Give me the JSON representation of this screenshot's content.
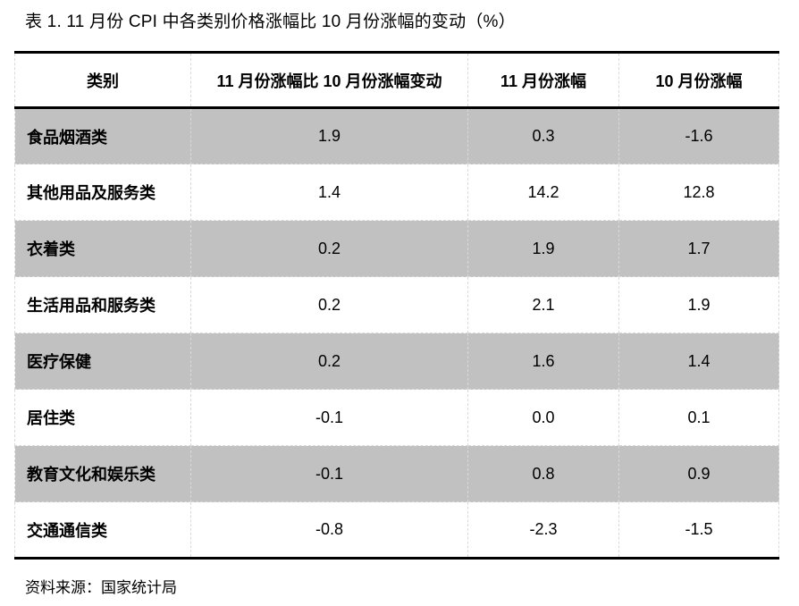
{
  "title": "表 1. 11 月份 CPI 中各类别价格涨幅比 10 月份涨幅的变动（%）",
  "source_note": "资料来源：国家统计局",
  "headers": [
    "类别",
    "11 月份涨幅比 10 月份涨幅变动",
    "11 月份涨幅",
    "10 月份涨幅"
  ],
  "rows": [
    [
      "食品烟酒类",
      "1.9",
      "0.3",
      "-1.6"
    ],
    [
      "其他用品及服务类",
      "1.4",
      "14.2",
      "12.8"
    ],
    [
      "衣着类",
      "0.2",
      "1.9",
      "1.7"
    ],
    [
      "生活用品和服务类",
      "0.2",
      "2.1",
      "1.9"
    ],
    [
      "医疗保健",
      "0.2",
      "1.6",
      "1.4"
    ],
    [
      "居住类",
      "-0.1",
      "0.0",
      "0.1"
    ],
    [
      "教育文化和娱乐类",
      "-0.1",
      "0.8",
      "0.9"
    ],
    [
      "交通通信类",
      "-0.8",
      "-2.3",
      "-1.5"
    ]
  ],
  "colors": {
    "background": "#ffffff",
    "row_stripe": "#c1c1c1",
    "thick_border": "#000000",
    "dashed_grid": "#d9d9d9",
    "text": "#000000"
  },
  "chart_data": {
    "type": "table",
    "title": "表 1. 11 月份 CPI 中各类别价格涨幅比 10 月份涨幅的变动（%）",
    "columns": [
      "类别",
      "11 月份涨幅比 10 月份涨幅变动",
      "11 月份涨幅",
      "10 月份涨幅"
    ],
    "categories": [
      "食品烟酒类",
      "其他用品及服务类",
      "衣着类",
      "生活用品和服务类",
      "医疗保健",
      "居住类",
      "教育文化和娱乐类",
      "交通通信类"
    ],
    "series": [
      {
        "name": "11 月份涨幅比 10 月份涨幅变动",
        "values": [
          1.9,
          1.4,
          0.2,
          0.2,
          0.2,
          -0.1,
          -0.1,
          -0.8
        ]
      },
      {
        "name": "11 月份涨幅",
        "values": [
          0.3,
          14.2,
          1.9,
          2.1,
          1.6,
          0.0,
          0.8,
          -2.3
        ]
      },
      {
        "name": "10 月份涨幅",
        "values": [
          -1.6,
          12.8,
          1.7,
          1.9,
          1.4,
          0.1,
          0.9,
          -1.5
        ]
      }
    ],
    "unit": "%",
    "source": "资料来源：国家统计局",
    "layout": {
      "striped_rows": "odd rows gray",
      "borders": "thick top/header/bottom rules, dashed inner grid"
    }
  }
}
